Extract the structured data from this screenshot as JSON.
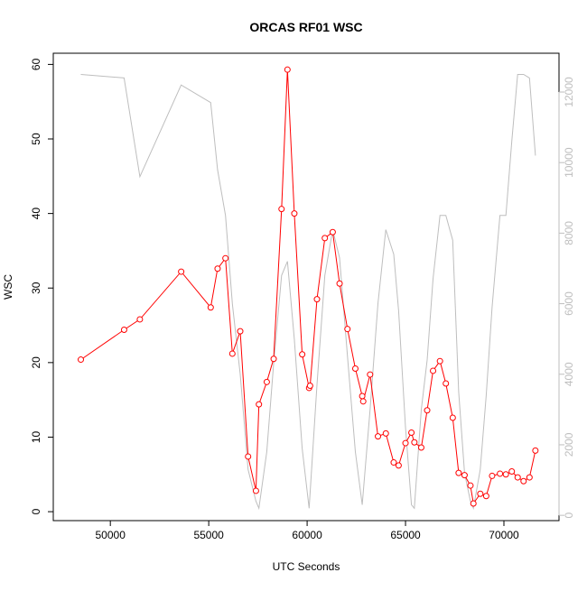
{
  "chart_data": {
    "type": "line",
    "title": "ORCAS RF01 WSC",
    "xlabel": "UTC Seconds",
    "ylabel": "WSC",
    "xlim": [
      47100,
      72800
    ],
    "ylim": [
      -1.2,
      61.5
    ],
    "y2lim": [
      -150,
      13100
    ],
    "x_ticks": [
      50000,
      55000,
      60000,
      65000,
      70000
    ],
    "y_ticks": [
      0,
      10,
      20,
      30,
      40,
      50,
      60
    ],
    "y2_ticks": [
      0,
      2000,
      4000,
      6000,
      8000,
      10000,
      12000
    ],
    "grid": false,
    "legend": "none",
    "colors": {
      "primary": "#ff0000",
      "secondary": "#bebebe",
      "axis": "#000000"
    },
    "series": [
      {
        "axis": "left",
        "style": "line+points",
        "color": "#ff0000",
        "x": [
          48500,
          50700,
          51500,
          53600,
          55100,
          55450,
          55850,
          56200,
          56600,
          57000,
          57400,
          57550,
          57950,
          58300,
          58700,
          59000,
          59350,
          59750,
          60100,
          60150,
          60500,
          60900,
          61300,
          61650,
          62050,
          62450,
          62800,
          62850,
          63200,
          63600,
          64000,
          64400,
          64650,
          65000,
          65300,
          65450,
          65800,
          66100,
          66400,
          66750,
          67050,
          67400,
          67700,
          68000,
          68300,
          68450,
          68800,
          69100,
          69400,
          69800,
          70100,
          70400,
          70700,
          71000,
          71300,
          71600
        ],
        "y": [
          20.4,
          24.4,
          25.8,
          32.2,
          27.4,
          32.6,
          34.0,
          21.2,
          24.2,
          7.4,
          2.8,
          14.4,
          17.4,
          20.5,
          40.6,
          59.3,
          40.0,
          21.1,
          16.6,
          16.9,
          28.5,
          36.7,
          37.5,
          30.6,
          24.5,
          19.2,
          15.5,
          14.8,
          18.4,
          10.1,
          10.5,
          6.6,
          6.2,
          9.2,
          10.6,
          9.3,
          8.6,
          13.6,
          18.9,
          20.2,
          17.2,
          12.6,
          5.2,
          4.9,
          3.5,
          1.1,
          2.4,
          2.1,
          4.8,
          5.1,
          5.0,
          5.4,
          4.6,
          4.1,
          4.6,
          8.2
        ]
      },
      {
        "axis": "right",
        "style": "line",
        "color": "#bebebe",
        "x": [
          48500,
          50700,
          51500,
          53600,
          55100,
          55450,
          55850,
          56200,
          56600,
          57000,
          57400,
          57550,
          57950,
          58300,
          58700,
          59000,
          59350,
          59750,
          60100,
          60500,
          60900,
          61300,
          61650,
          62050,
          62450,
          62800,
          63200,
          63600,
          64000,
          64400,
          64650,
          65000,
          65300,
          65450,
          65800,
          66100,
          66400,
          66750,
          67050,
          67400,
          67700,
          68000,
          68300,
          68450,
          68800,
          69100,
          69400,
          69800,
          70100,
          70400,
          70700,
          71000,
          71300,
          71600
        ],
        "y": [
          12500,
          12400,
          9600,
          12200,
          11700,
          9800,
          8500,
          6000,
          4000,
          1300,
          400,
          200,
          1800,
          4300,
          6800,
          7200,
          5000,
          1900,
          200,
          3700,
          6800,
          8100,
          7300,
          4500,
          1800,
          300,
          3000,
          6000,
          8100,
          7400,
          5800,
          2500,
          300,
          200,
          3000,
          4400,
          6700,
          8500,
          8500,
          7800,
          3500,
          1200,
          400,
          200,
          1300,
          3400,
          5900,
          8500,
          8500,
          10600,
          12500,
          12500,
          12400,
          10200
        ]
      }
    ]
  }
}
